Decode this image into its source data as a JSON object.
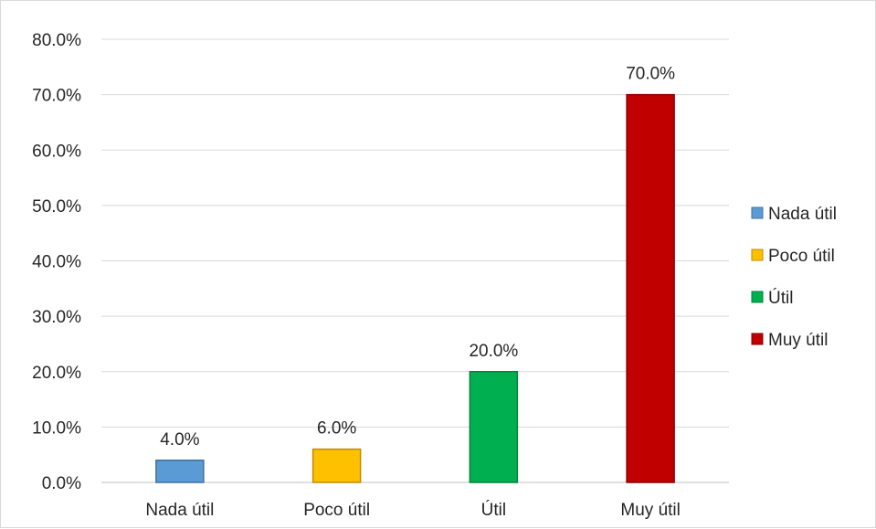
{
  "chart_data": {
    "type": "bar",
    "categories": [
      "Nada útil",
      "Poco útil",
      "Útil",
      "Muy útil"
    ],
    "values": [
      4.0,
      6.0,
      20.0,
      70.0
    ],
    "data_labels": [
      "4.0%",
      "6.0%",
      "20.0%",
      "70.0%"
    ],
    "colors": [
      "#5B9BD5",
      "#FFC000",
      "#00B050",
      "#C00000"
    ],
    "border_colors": [
      "#41719C",
      "#BC8C00",
      "#00823B",
      "#8E0000"
    ],
    "ylim": [
      0,
      80
    ],
    "yticks": [
      "0.0%",
      "10.0%",
      "20.0%",
      "30.0%",
      "40.0%",
      "50.0%",
      "60.0%",
      "70.0%",
      "80.0%"
    ],
    "grid": true,
    "legend": {
      "position": "right",
      "entries": [
        "Nada útil",
        "Poco útil",
        "Útil",
        "Muy útil"
      ]
    },
    "title": "",
    "xlabel": "",
    "ylabel": ""
  }
}
